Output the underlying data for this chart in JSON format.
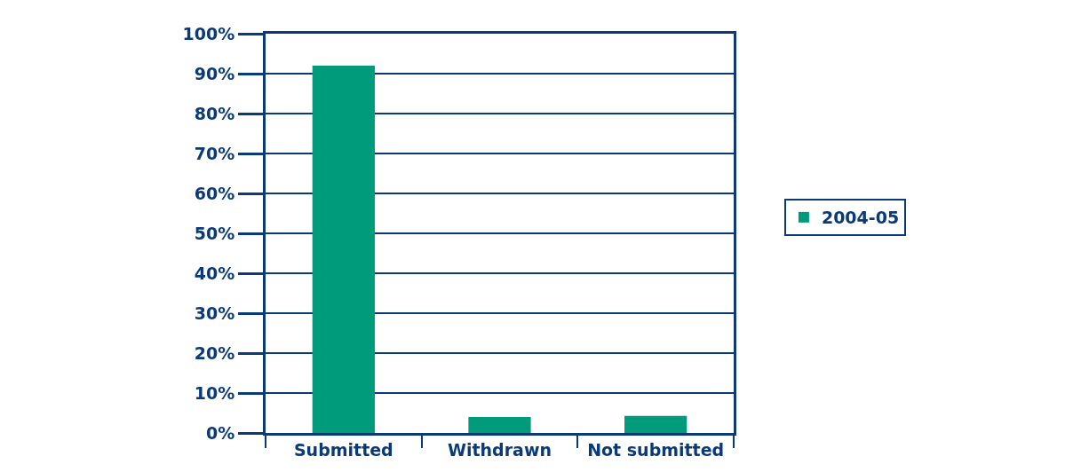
{
  "chart_data": {
    "type": "bar",
    "categories": [
      "Submitted",
      "Withdrawn",
      "Not submitted"
    ],
    "series": [
      {
        "name": "2004-05",
        "color": "#009b7b",
        "values": [
          92,
          4,
          4.3
        ]
      }
    ],
    "ylim": [
      0,
      100
    ],
    "yticks": [
      {
        "value": 0,
        "label": "0%"
      },
      {
        "value": 10,
        "label": "10%"
      },
      {
        "value": 20,
        "label": "20%"
      },
      {
        "value": 30,
        "label": "30%"
      },
      {
        "value": 40,
        "label": "40%"
      },
      {
        "value": 50,
        "label": "50%"
      },
      {
        "value": 60,
        "label": "60%"
      },
      {
        "value": 70,
        "label": "70%"
      },
      {
        "value": 80,
        "label": "80%"
      },
      {
        "value": 90,
        "label": "90%"
      },
      {
        "value": 100,
        "label": "100%"
      }
    ],
    "grid": "y",
    "legend": "right"
  }
}
